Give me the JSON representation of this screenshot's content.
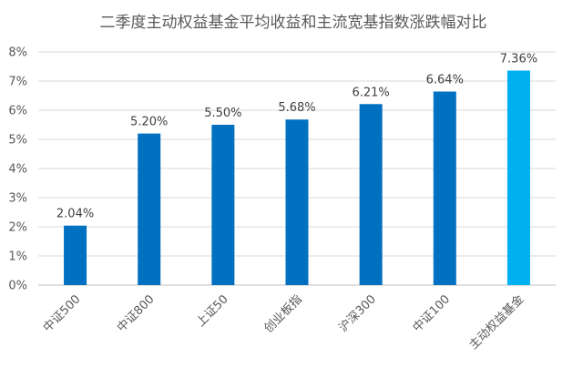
{
  "chart_data": {
    "type": "bar",
    "title": "二季度主动权益基金平均收益和主流宽基指数涨跌幅对比",
    "categories": [
      "中证500",
      "中证800",
      "上证50",
      "创业板指",
      "沪深300",
      "中证100",
      "主动权益基金"
    ],
    "values": [
      2.04,
      5.2,
      5.5,
      5.68,
      6.21,
      6.64,
      7.36
    ],
    "data_labels": [
      "2.04%",
      "5.20%",
      "5.50%",
      "5.68%",
      "6.21%",
      "6.64%",
      "7.36%"
    ],
    "ylim": [
      0,
      8
    ],
    "yticks": [
      "0%",
      "1%",
      "2%",
      "3%",
      "4%",
      "5%",
      "6%",
      "7%",
      "8%"
    ],
    "grid": true,
    "colors": {
      "default": "#0070c0",
      "highlight": "#00b0f0"
    },
    "highlight_index": 6
  }
}
